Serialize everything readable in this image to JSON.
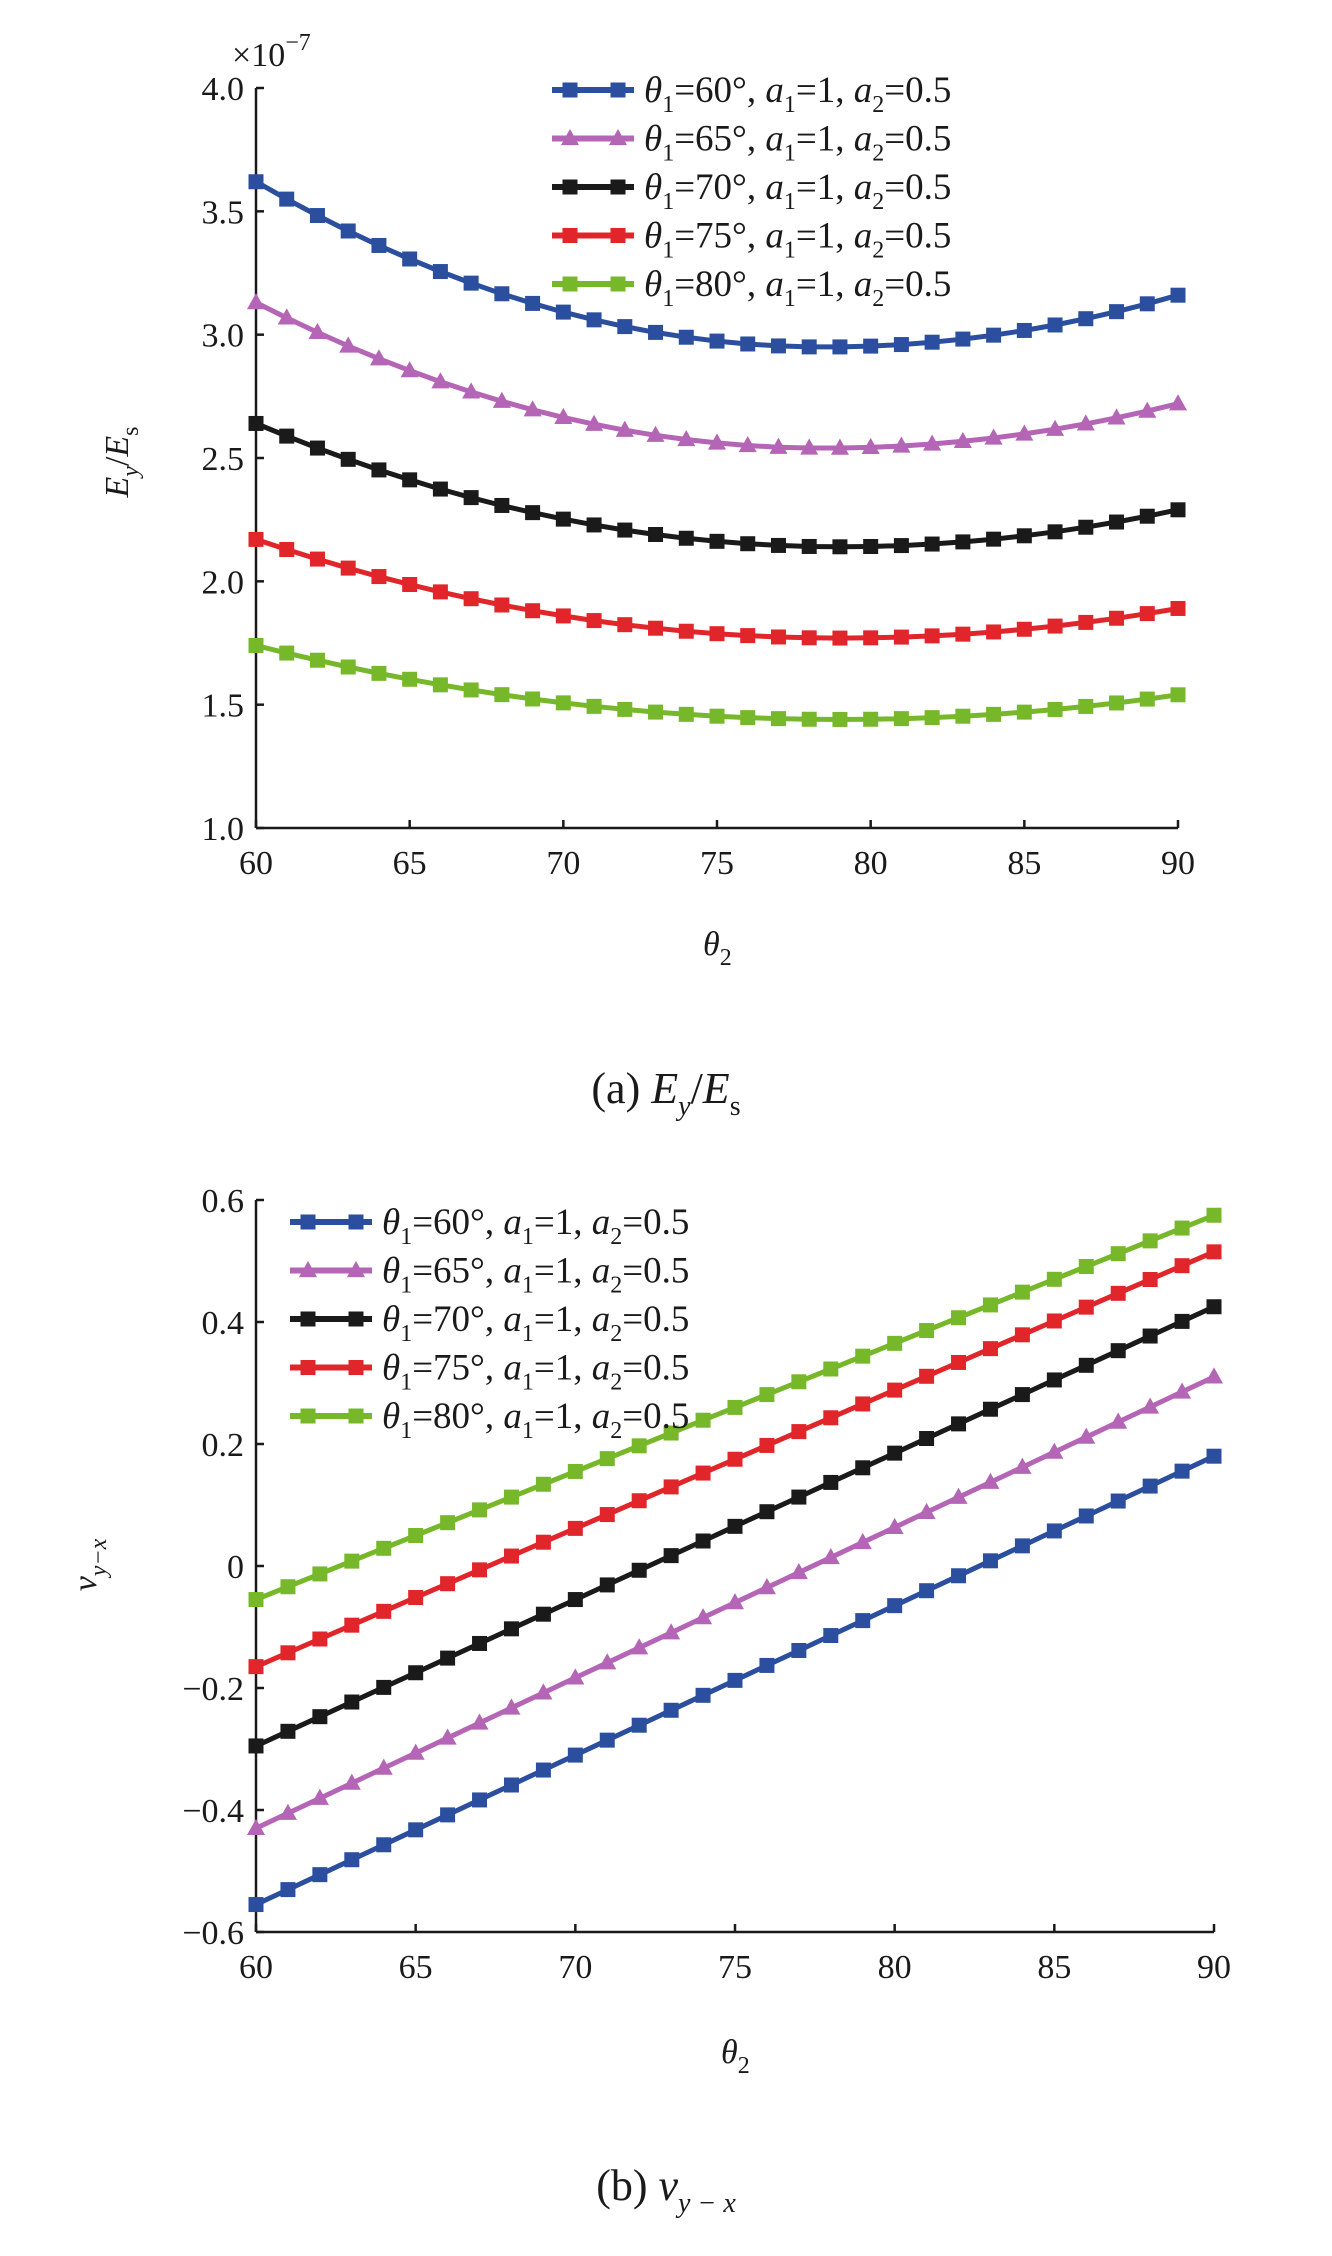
{
  "chart_data": [
    {
      "type": "line",
      "panel": "a",
      "caption": "(a) Ey/Es",
      "caption_parts": {
        "label": "(a)",
        "var1": "E",
        "sub1": "y",
        "sep": "/",
        "var2": "E",
        "sub2": "s"
      },
      "ylabel": "Ey/Es",
      "ylabel_parts": {
        "var1": "E",
        "sub1": "y",
        "sep": "/",
        "var2": "E",
        "sub2": "s"
      },
      "xlabel": "θ2",
      "xlabel_parts": {
        "var": "θ",
        "sub": "2"
      },
      "multiplier": {
        "sign": "×",
        "base": "10",
        "exp": "−7"
      },
      "xlim": [
        60,
        90
      ],
      "ylim": [
        1.0,
        4.0
      ],
      "xticks": [
        "60",
        "65",
        "70",
        "75",
        "80",
        "85",
        "90"
      ],
      "yticks": [
        "1.0",
        "1.5",
        "2.0",
        "2.5",
        "3.0",
        "3.5",
        "4.0"
      ],
      "x_start": 60,
      "x_end": 90,
      "x_step": 1,
      "legend_position": "top-right",
      "series": [
        {
          "name": "θ1=60°, a1=1, a2=0.5",
          "color": "#2b4f9e",
          "marker": "square",
          "label_parts": {
            "v1": "θ",
            "s1": "1",
            "eq1": "=60°, ",
            "v2": "a",
            "s2": "1",
            "eq2": "=1, ",
            "v3": "a",
            "s3": "2",
            "eq3": "=0.5"
          },
          "model": {
            "type": "quadratic",
            "v0": 3.62,
            "vmin": 2.95,
            "xmin": 78.5,
            "v90": 3.16
          }
        },
        {
          "name": "θ1=65°, a1=1, a2=0.5",
          "color": "#b565b5",
          "marker": "triangle",
          "label_parts": {
            "v1": "θ",
            "s1": "1",
            "eq1": "=65°, ",
            "v2": "a",
            "s2": "1",
            "eq2": "=1, ",
            "v3": "a",
            "s3": "2",
            "eq3": "=0.5"
          },
          "model": {
            "type": "quadratic",
            "v0": 3.13,
            "vmin": 2.54,
            "xmin": 78.5,
            "v90": 2.72
          }
        },
        {
          "name": "θ1=70°, a1=1, a2=0.5",
          "color": "#1a1a1a",
          "marker": "square",
          "label_parts": {
            "v1": "θ",
            "s1": "1",
            "eq1": "=70°, ",
            "v2": "a",
            "s2": "1",
            "eq2": "=1, ",
            "v3": "a",
            "s3": "2",
            "eq3": "=0.5"
          },
          "model": {
            "type": "quadratic",
            "v0": 2.64,
            "vmin": 2.14,
            "xmin": 79,
            "v90": 2.29
          }
        },
        {
          "name": "θ1=75°, a1=1, a2=0.5",
          "color": "#e0262b",
          "marker": "square",
          "label_parts": {
            "v1": "θ",
            "s1": "1",
            "eq1": "=75°, ",
            "v2": "a",
            "s2": "1",
            "eq2": "=1, ",
            "v3": "a",
            "s3": "2",
            "eq3": "=0.5"
          },
          "model": {
            "type": "quadratic",
            "v0": 2.17,
            "vmin": 1.77,
            "xmin": 79,
            "v90": 1.89
          }
        },
        {
          "name": "θ1=80°, a1=1, a2=0.5",
          "color": "#76b82a",
          "marker": "square",
          "label_parts": {
            "v1": "θ",
            "s1": "1",
            "eq1": "=80°, ",
            "v2": "a",
            "s2": "1",
            "eq2": "=1, ",
            "v3": "a",
            "s3": "2",
            "eq3": "=0.5"
          },
          "model": {
            "type": "quadratic",
            "v0": 1.74,
            "vmin": 1.44,
            "xmin": 79,
            "v90": 1.54
          }
        }
      ]
    },
    {
      "type": "line",
      "panel": "b",
      "caption": "(b) νy−x",
      "caption_parts": {
        "label": "(b)",
        "var": "ν",
        "sub": "y − x"
      },
      "ylabel": "νy−x",
      "ylabel_parts": {
        "var": "ν",
        "sub": "y−x"
      },
      "xlabel": "θ2",
      "xlabel_parts": {
        "var": "θ",
        "sub": "2"
      },
      "xlim": [
        60,
        90
      ],
      "ylim": [
        -0.6,
        0.6
      ],
      "xticks": [
        "60",
        "65",
        "70",
        "75",
        "80",
        "85",
        "90"
      ],
      "yticks": [
        "−0.6",
        "−0.4",
        "−0.2",
        "0",
        "0.2",
        "0.4",
        "0.6"
      ],
      "x_start": 60,
      "x_end": 90,
      "x_step": 1,
      "legend_position": "top-left",
      "series": [
        {
          "name": "θ1=60°, a1=1, a2=0.5",
          "color": "#2b4f9e",
          "marker": "square",
          "label_parts": {
            "v1": "θ",
            "s1": "1",
            "eq1": "=60°, ",
            "v2": "a",
            "s2": "1",
            "eq2": "=1, ",
            "v3": "a",
            "s3": "2",
            "eq3": "=0.5"
          },
          "model": {
            "type": "linear",
            "v0": -0.555,
            "v90": 0.18
          }
        },
        {
          "name": "θ1=65°, a1=1, a2=0.5",
          "color": "#b565b5",
          "marker": "triangle",
          "label_parts": {
            "v1": "θ",
            "s1": "1",
            "eq1": "=65°, ",
            "v2": "a",
            "s2": "1",
            "eq2": "=1, ",
            "v3": "a",
            "s3": "2",
            "eq3": "=0.5"
          },
          "model": {
            "type": "linear",
            "v0": -0.43,
            "v90": 0.31
          }
        },
        {
          "name": "θ1=70°, a1=1, a2=0.5",
          "color": "#1a1a1a",
          "marker": "square",
          "label_parts": {
            "v1": "θ",
            "s1": "1",
            "eq1": "=70°, ",
            "v2": "a",
            "s2": "1",
            "eq2": "=1, ",
            "v3": "a",
            "s3": "2",
            "eq3": "=0.5"
          },
          "model": {
            "type": "linear",
            "v0": -0.295,
            "v90": 0.425
          }
        },
        {
          "name": "θ1=75°, a1=1, a2=0.5",
          "color": "#e0262b",
          "marker": "square",
          "label_parts": {
            "v1": "θ",
            "s1": "1",
            "eq1": "=75°, ",
            "v2": "a",
            "s2": "1",
            "eq2": "=1, ",
            "v3": "a",
            "s3": "2",
            "eq3": "=0.5"
          },
          "model": {
            "type": "linear",
            "v0": -0.165,
            "v90": 0.515
          }
        },
        {
          "name": "θ1=80°, a1=1, a2=0.5",
          "color": "#76b82a",
          "marker": "square",
          "label_parts": {
            "v1": "θ",
            "s1": "1",
            "eq1": "=80°, ",
            "v2": "a",
            "s2": "1",
            "eq2": "=1, ",
            "v3": "a",
            "s3": "2",
            "eq3": "=0.5"
          },
          "model": {
            "type": "linear",
            "v0": -0.055,
            "v90": 0.575
          }
        }
      ]
    }
  ]
}
